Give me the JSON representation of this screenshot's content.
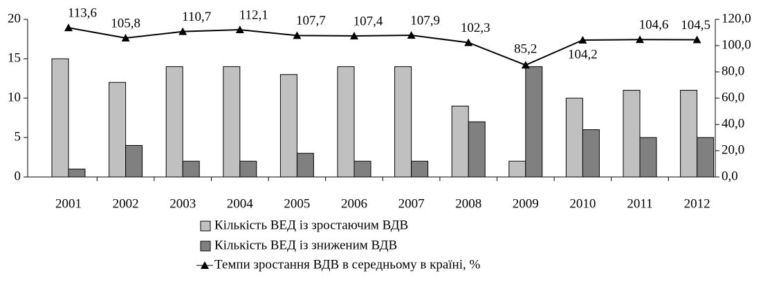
{
  "chart_data": {
    "type": "bar-line",
    "categories": [
      "2001",
      "2002",
      "2003",
      "2004",
      "2005",
      "2006",
      "2007",
      "2008",
      "2009",
      "2010",
      "2011",
      "2012"
    ],
    "series": [
      {
        "name": "Кількість ВЕД із зростаючим ВДВ",
        "type": "bar",
        "color": "#c0c0c0",
        "values": [
          15,
          12,
          14,
          14,
          13,
          14,
          14,
          9,
          2,
          10,
          11,
          11
        ]
      },
      {
        "name": "Кількість ВЕД із зниженим ВДВ",
        "type": "bar",
        "color": "#808080",
        "values": [
          1,
          4,
          2,
          2,
          3,
          2,
          2,
          7,
          14,
          6,
          5,
          5
        ]
      },
      {
        "name": "Темпи зростання ВДВ в середньому в країні, %",
        "type": "line",
        "axis": "y2",
        "color": "#000000",
        "values": [
          113.6,
          105.8,
          110.7,
          112.1,
          107.7,
          107.4,
          107.9,
          102.3,
          85.2,
          104.2,
          104.6,
          104.5
        ],
        "value_labels": [
          "113,6",
          "105,8",
          "110,7",
          "112,1",
          "107,7",
          "107,4",
          "107,9",
          "102,3",
          "85,2",
          "104,2",
          "104,6",
          "104,5"
        ]
      }
    ],
    "ylim": [
      0,
      20
    ],
    "yticks": [
      0,
      5,
      10,
      15,
      20
    ],
    "y2lim": [
      0,
      120
    ],
    "y2ticks": [
      {
        "value": 0,
        "label": "0,0"
      },
      {
        "value": 20,
        "label": "20,0"
      },
      {
        "value": 40,
        "label": "40,0"
      },
      {
        "value": 60,
        "label": "60,0"
      },
      {
        "value": 80,
        "label": "80,0"
      },
      {
        "value": 100,
        "label": "100,0"
      },
      {
        "value": 120,
        "label": "120,0"
      }
    ],
    "legend": "bottom"
  }
}
